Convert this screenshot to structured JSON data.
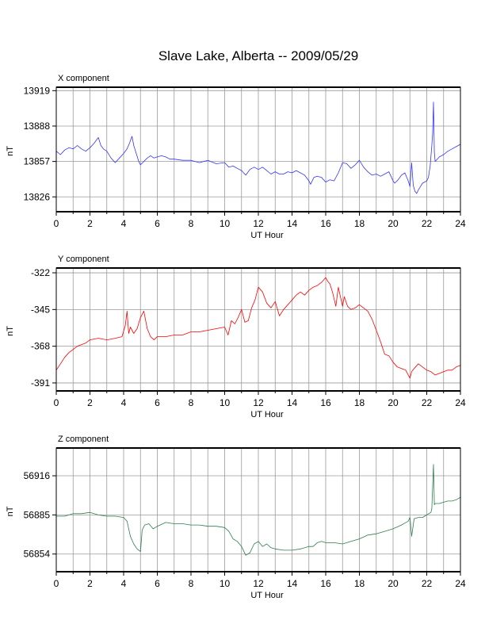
{
  "title": "Slave Lake, Alberta -- 2009/05/29",
  "chart_data": [
    {
      "type": "line",
      "title": "X component",
      "xlabel": "UT Hour",
      "ylabel": "nT",
      "xlim": [
        0,
        24
      ],
      "ylim": [
        13813,
        13922
      ],
      "xticks": [
        0,
        2,
        4,
        6,
        8,
        10,
        12,
        14,
        16,
        18,
        20,
        22,
        24
      ],
      "yticks": [
        13826,
        13857,
        13888,
        13919
      ],
      "grid": true,
      "series": [
        {
          "color": "#3333ff",
          "x": [
            0,
            0.25,
            0.5,
            0.75,
            1,
            1.25,
            1.5,
            1.75,
            2,
            2.25,
            2.4,
            2.5,
            2.65,
            2.8,
            3,
            3.25,
            3.5,
            3.75,
            4,
            4.2,
            4.35,
            4.5,
            4.6,
            4.75,
            4.9,
            5,
            5.2,
            5.4,
            5.6,
            5.8,
            6,
            6.25,
            6.5,
            6.75,
            7,
            7.5,
            8,
            8.5,
            9,
            9.5,
            10,
            10.25,
            10.5,
            10.75,
            11,
            11.25,
            11.5,
            11.75,
            12,
            12.25,
            12.5,
            12.75,
            13,
            13.25,
            13.5,
            13.75,
            14,
            14.25,
            14.5,
            14.75,
            15,
            15.1,
            15.3,
            15.5,
            15.75,
            16,
            16.25,
            16.5,
            16.75,
            17,
            17.25,
            17.5,
            17.75,
            18,
            18.25,
            18.5,
            18.75,
            19,
            19.25,
            19.5,
            19.75,
            20,
            20.1,
            20.3,
            20.5,
            20.7,
            20.9,
            21,
            21.1,
            21.2,
            21.3,
            21.4,
            21.5,
            21.75,
            22,
            22.1,
            22.2,
            22.3,
            22.35,
            22.4,
            22.45,
            22.5,
            22.75,
            23,
            23.25,
            23.5,
            23.75,
            24
          ],
          "values": [
            13866,
            13863,
            13867,
            13869,
            13868,
            13871,
            13868,
            13866,
            13869,
            13873,
            13876,
            13878,
            13871,
            13868,
            13866,
            13860,
            13856,
            13860,
            13864,
            13868,
            13873,
            13879,
            13871,
            13864,
            13857,
            13854,
            13857,
            13860,
            13862,
            13860,
            13861,
            13862,
            13861,
            13859,
            13859,
            13858,
            13858,
            13856,
            13858,
            13855,
            13856,
            13852,
            13853,
            13851,
            13849,
            13845,
            13850,
            13852,
            13850,
            13852,
            13849,
            13846,
            13848,
            13846,
            13846,
            13848,
            13847,
            13849,
            13847,
            13845,
            13840,
            13837,
            13843,
            13844,
            13843,
            13839,
            13841,
            13840,
            13847,
            13856,
            13855,
            13851,
            13854,
            13858,
            13852,
            13848,
            13845,
            13846,
            13844,
            13846,
            13848,
            13840,
            13838,
            13841,
            13845,
            13847,
            13840,
            13835,
            13856,
            13836,
            13831,
            13829,
            13832,
            13838,
            13840,
            13843,
            13853,
            13871,
            13881,
            13909,
            13865,
            13857,
            13861,
            13863,
            13866,
            13868,
            13870,
            13872
          ]
        }
      ]
    },
    {
      "type": "line",
      "title": "Y component",
      "xlabel": "UT Hour",
      "ylabel": "nT",
      "xlim": [
        0,
        24
      ],
      "ylim": [
        -396,
        -319
      ],
      "xticks": [
        0,
        2,
        4,
        6,
        8,
        10,
        12,
        14,
        16,
        18,
        20,
        22,
        24
      ],
      "yticks": [
        -322,
        -345,
        -368,
        -391
      ],
      "grid": true,
      "series": [
        {
          "color": "#ff0000",
          "x": [
            0,
            0.25,
            0.5,
            0.75,
            1,
            1.25,
            1.5,
            1.75,
            2,
            2.5,
            3,
            3.5,
            3.9,
            4.1,
            4.2,
            4.3,
            4.4,
            4.6,
            4.8,
            5,
            5.2,
            5.4,
            5.6,
            5.8,
            6,
            6.5,
            7,
            7.5,
            8,
            8.5,
            9,
            9.5,
            10,
            10.2,
            10.4,
            10.6,
            10.8,
            11,
            11.2,
            11.4,
            11.6,
            11.8,
            12,
            12.25,
            12.5,
            12.75,
            13,
            13.25,
            13.5,
            13.75,
            14,
            14.25,
            14.5,
            14.75,
            15,
            15.25,
            15.5,
            15.75,
            16,
            16.1,
            16.25,
            16.4,
            16.6,
            16.75,
            17,
            17.1,
            17.3,
            17.5,
            17.75,
            18,
            18.25,
            18.5,
            18.75,
            19,
            19.25,
            19.5,
            19.75,
            20,
            20.25,
            20.5,
            20.75,
            21,
            21.1,
            21.25,
            21.5,
            21.75,
            22,
            22.25,
            22.5,
            22.75,
            23,
            23.25,
            23.5,
            23.75,
            24
          ],
          "values": [
            -383,
            -379,
            -375,
            -372,
            -370,
            -368,
            -367,
            -366,
            -364,
            -363,
            -364,
            -363,
            -362,
            -355,
            -346,
            -360,
            -356,
            -360,
            -357,
            -350,
            -346,
            -357,
            -362,
            -364,
            -362,
            -362,
            -361,
            -361,
            -359,
            -359,
            -358,
            -357,
            -356,
            -361,
            -352,
            -354,
            -350,
            -345,
            -353,
            -352,
            -344,
            -339,
            -331,
            -334,
            -341,
            -344,
            -340,
            -349,
            -345,
            -342,
            -339,
            -336,
            -334,
            -336,
            -333,
            -331,
            -330,
            -328,
            -325,
            -327,
            -329,
            -334,
            -343,
            -331,
            -343,
            -337,
            -343,
            -345,
            -344,
            -342,
            -344,
            -346,
            -351,
            -358,
            -365,
            -373,
            -374,
            -378,
            -381,
            -382,
            -383,
            -388,
            -384,
            -382,
            -379,
            -381,
            -383,
            -384,
            -386,
            -385,
            -384,
            -383,
            -383,
            -381,
            -380
          ]
        }
      ]
    },
    {
      "type": "line",
      "title": "Z component",
      "xlabel": "UT Hour",
      "ylabel": "nT",
      "xlim": [
        0,
        24
      ],
      "ylim": [
        56840,
        56938
      ],
      "xticks": [
        0,
        2,
        4,
        6,
        8,
        10,
        12,
        14,
        16,
        18,
        20,
        22,
        24
      ],
      "yticks": [
        56854,
        56885,
        56916
      ],
      "grid": true,
      "series": [
        {
          "color": "#2e7d4f",
          "x": [
            0,
            0.5,
            1,
            1.5,
            2,
            2.5,
            3,
            3.5,
            4,
            4.2,
            4.4,
            4.6,
            4.8,
            5,
            5.1,
            5.25,
            5.5,
            5.75,
            6,
            6.5,
            7,
            7.5,
            8,
            8.5,
            9,
            9.5,
            10,
            10.25,
            10.5,
            10.75,
            11,
            11.25,
            11.5,
            11.75,
            12,
            12.25,
            12.5,
            12.75,
            13,
            13.5,
            14,
            14.5,
            15,
            15.25,
            15.5,
            15.75,
            16,
            16.5,
            17,
            17.5,
            18,
            18.5,
            19,
            19.5,
            20,
            20.5,
            20.9,
            21,
            21.1,
            21.25,
            21.5,
            21.75,
            22,
            22.25,
            22.3,
            22.4,
            22.45,
            22.5,
            22.75,
            23,
            23.25,
            23.5,
            23.75,
            24
          ],
          "values": [
            56884,
            56884,
            56886,
            56886,
            56887,
            56885,
            56884,
            56884,
            56883,
            56880,
            56868,
            56862,
            56858,
            56856,
            56873,
            56877,
            56878,
            56874,
            56876,
            56879,
            56878,
            56878,
            56877,
            56877,
            56876,
            56876,
            56875,
            56872,
            56866,
            56864,
            56860,
            56853,
            56855,
            56862,
            56864,
            56860,
            56862,
            56859,
            56858,
            56857,
            56857,
            56858,
            56860,
            56860,
            56863,
            56864,
            56863,
            56863,
            56862,
            56864,
            56866,
            56869,
            56870,
            56872,
            56874,
            56877,
            56880,
            56883,
            56868,
            56882,
            56883,
            56883,
            56885,
            56887,
            56890,
            56925,
            56893,
            56894,
            56894,
            56895,
            56896,
            56896,
            56897,
            56899
          ]
        }
      ]
    }
  ]
}
